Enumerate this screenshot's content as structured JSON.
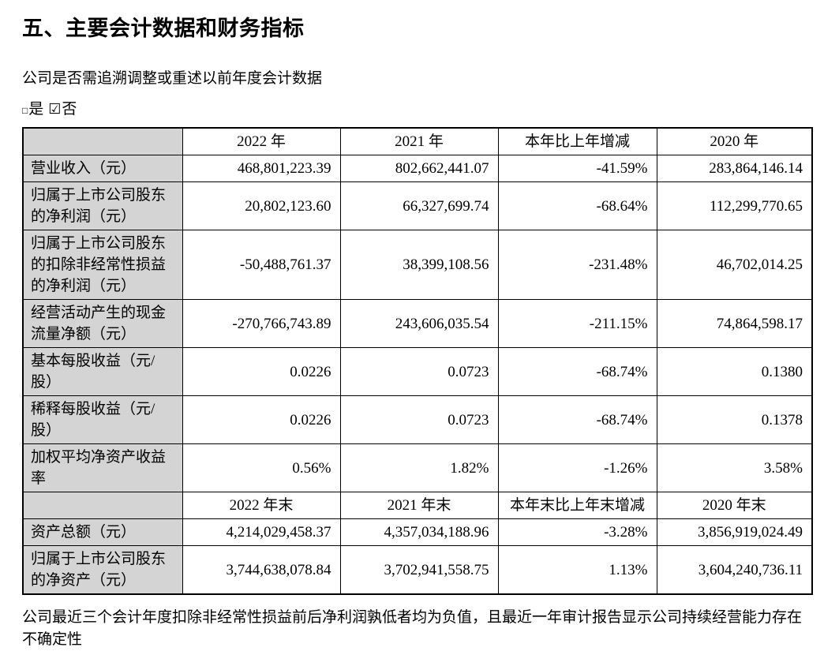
{
  "title": "五、主要会计数据和财务指标",
  "question": "公司是否需追溯调整或重述以前年度会计数据",
  "checkboxes": {
    "yes": {
      "symbol": "□",
      "label": "是",
      "checked": false
    },
    "no": {
      "symbol": "☑",
      "label": "否",
      "checked": true
    }
  },
  "table": {
    "sections": [
      {
        "header": [
          "",
          "2022 年",
          "2021 年",
          "本年比上年增减",
          "2020 年"
        ],
        "rows": [
          {
            "label": "营业收入（元）",
            "values": [
              "468,801,223.39",
              "802,662,441.07",
              "-41.59%",
              "283,864,146.14"
            ]
          },
          {
            "label": "归属于上市公司股东的净利润（元）",
            "values": [
              "20,802,123.60",
              "66,327,699.74",
              "-68.64%",
              "112,299,770.65"
            ]
          },
          {
            "label": "归属于上市公司股东的扣除非经常性损益的净利润（元）",
            "values": [
              "-50,488,761.37",
              "38,399,108.56",
              "-231.48%",
              "46,702,014.25"
            ]
          },
          {
            "label": "经营活动产生的现金流量净额（元）",
            "values": [
              "-270,766,743.89",
              "243,606,035.54",
              "-211.15%",
              "74,864,598.17"
            ]
          },
          {
            "label": "基本每股收益（元/股）",
            "values": [
              "0.0226",
              "0.0723",
              "-68.74%",
              "0.1380"
            ]
          },
          {
            "label": "稀释每股收益（元/股）",
            "values": [
              "0.0226",
              "0.0723",
              "-68.74%",
              "0.1378"
            ]
          },
          {
            "label": "加权平均净资产收益率",
            "values": [
              "0.56%",
              "1.82%",
              "-1.26%",
              "3.58%"
            ]
          }
        ]
      },
      {
        "header": [
          "",
          "2022 年末",
          "2021 年末",
          "本年末比上年末增减",
          "2020 年末"
        ],
        "rows": [
          {
            "label": "资产总额（元）",
            "values": [
              "4,214,029,458.37",
              "4,357,034,188.96",
              "-3.28%",
              "3,856,919,024.49"
            ]
          },
          {
            "label": "归属于上市公司股东的净资产（元）",
            "values": [
              "3,744,638,078.84",
              "3,702,941,558.75",
              "1.13%",
              "3,604,240,736.11"
            ]
          }
        ]
      }
    ]
  },
  "footnote": "公司最近三个会计年度扣除非经常性损益前后净利润孰低者均为负值，且最近一年审计报告显示公司持续经营能力存在不确定性",
  "colors": {
    "header_fill": "#d4d4d4",
    "border": "#000000",
    "text": "#000000",
    "background": "#ffffff"
  }
}
